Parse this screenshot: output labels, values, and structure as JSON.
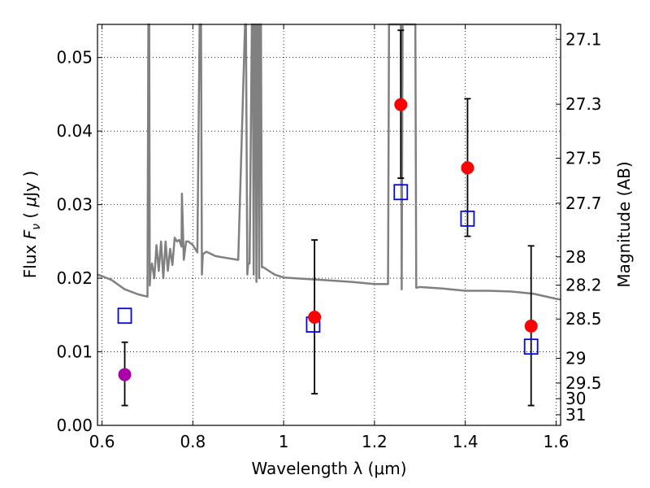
{
  "chart_data": {
    "type": "scatter",
    "xlabel": "Wavelength  λ (μm)",
    "ylabel": "Flux  F_ν  ( μJy )",
    "ylabel_parts": {
      "prefix": "Flux  ",
      "var": "F",
      "sub": "ν",
      "mid": "  ( ",
      "mu": "μ",
      "unit": "Jy )"
    },
    "y2label": "Magnitude (AB)",
    "xlim": [
      0.59,
      1.61
    ],
    "ylim": [
      0.0,
      0.0545
    ],
    "grid": true,
    "x_ticks": [
      {
        "v": 0.6,
        "label": "0.6"
      },
      {
        "v": 0.8,
        "label": "0.8"
      },
      {
        "v": 1.0,
        "label": "1"
      },
      {
        "v": 1.2,
        "label": "1.2"
      },
      {
        "v": 1.4,
        "label": "1.4"
      },
      {
        "v": 1.6,
        "label": "1.6"
      }
    ],
    "y_ticks": [
      {
        "v": 0.0,
        "label": "0.00"
      },
      {
        "v": 0.01,
        "label": "0.01"
      },
      {
        "v": 0.02,
        "label": "0.02"
      },
      {
        "v": 0.03,
        "label": "0.03"
      },
      {
        "v": 0.04,
        "label": "0.04"
      },
      {
        "v": 0.05,
        "label": "0.05"
      }
    ],
    "magnitude_ticks": [
      "27.1",
      "27.3",
      "27.5",
      "27.7",
      "28",
      "28.2",
      "28.5",
      "29",
      "29.5",
      "30",
      "31"
    ],
    "series": [
      {
        "kind": "model_spectrum",
        "color": "#808080",
        "x": [
          0.59,
          0.62,
          0.65,
          0.68,
          0.7,
          0.702,
          0.704,
          0.705,
          0.707,
          0.71,
          0.715,
          0.72,
          0.725,
          0.73,
          0.735,
          0.74,
          0.745,
          0.75,
          0.755,
          0.76,
          0.765,
          0.77,
          0.775,
          0.776,
          0.78,
          0.785,
          0.79,
          0.8,
          0.81,
          0.815,
          0.818,
          0.82,
          0.822,
          0.825,
          0.83,
          0.85,
          0.87,
          0.9,
          0.915,
          0.917,
          0.92,
          0.922,
          0.925,
          0.93,
          0.932,
          0.934,
          0.936,
          0.938,
          0.94,
          0.942,
          0.944,
          0.946,
          0.948,
          0.95,
          0.952,
          0.955,
          0.98,
          1.0,
          1.05,
          1.1,
          1.15,
          1.2,
          1.23,
          1.232,
          1.235,
          1.255,
          1.258,
          1.26,
          1.262,
          1.265,
          1.29,
          1.292,
          1.3,
          1.35,
          1.4,
          1.45,
          1.5,
          1.55,
          1.6,
          1.61
        ],
        "y": [
          0.0205,
          0.0198,
          0.0185,
          0.0178,
          0.0175,
          0.0545,
          0.0545,
          0.019,
          0.021,
          0.022,
          0.02,
          0.0245,
          0.021,
          0.025,
          0.02,
          0.025,
          0.021,
          0.024,
          0.0218,
          0.0255,
          0.025,
          0.0252,
          0.0243,
          0.0315,
          0.0225,
          0.025,
          0.025,
          0.0245,
          0.0235,
          0.0545,
          0.0545,
          0.0205,
          0.0232,
          0.0234,
          0.0236,
          0.023,
          0.0228,
          0.0225,
          0.0545,
          0.0545,
          0.0205,
          0.022,
          0.022,
          0.0545,
          0.0545,
          0.0205,
          0.0545,
          0.0545,
          0.0195,
          0.0545,
          0.0545,
          0.02,
          0.0545,
          0.0545,
          0.0215,
          0.0215,
          0.0205,
          0.0201,
          0.0199,
          0.0197,
          0.0195,
          0.0192,
          0.0192,
          0.0545,
          0.0545,
          0.0545,
          0.0545,
          0.0185,
          0.0545,
          0.0545,
          0.0545,
          0.0187,
          0.0188,
          0.0186,
          0.0183,
          0.0183,
          0.0182,
          0.0179,
          0.0172,
          0.0171
        ]
      },
      {
        "kind": "model_photometry",
        "marker": "open-square",
        "color": "#0000ff",
        "x": [
          0.65,
          1.065,
          1.258,
          1.405,
          1.545
        ],
        "y": [
          0.0149,
          0.0137,
          0.0317,
          0.0281,
          0.0107
        ]
      },
      {
        "kind": "observed",
        "marker": "filled-circle",
        "x": [
          0.65,
          1.068,
          1.258,
          1.405,
          1.545
        ],
        "y": [
          0.0069,
          0.0147,
          0.0436,
          0.035,
          0.0135
        ],
        "yerr_low": [
          0.0027,
          0.0043,
          0.0336,
          0.0257,
          0.0027
        ],
        "yerr_high": [
          0.0113,
          0.0252,
          0.0537,
          0.0444,
          0.0244
        ],
        "colors": [
          "#aa00aa",
          "#ff0000",
          "#ff0000",
          "#ff0000",
          "#ff0000"
        ]
      }
    ]
  }
}
